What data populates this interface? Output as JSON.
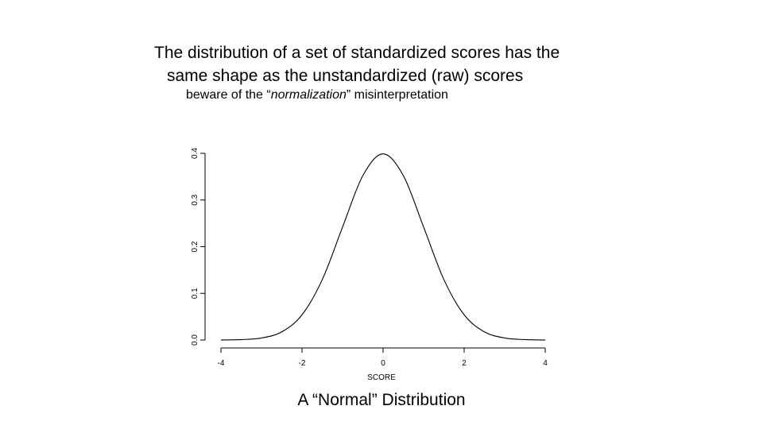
{
  "slide": {
    "title_line1": "The distribution of a set of standardized scores has the",
    "title_line2": "same shape as the unstandardized (raw) scores",
    "subtitle_pre": "beware of the “",
    "subtitle_em": "normalization",
    "subtitle_post": "” misinterpretation",
    "caption": "A “Normal” Distribution"
  },
  "chart_data": {
    "type": "line",
    "title": "",
    "xlabel": "SCORE",
    "ylabel": "",
    "xlim": [
      -4,
      4
    ],
    "ylim": [
      0,
      0.4
    ],
    "x_ticks": [
      -4,
      -2,
      0,
      2,
      4
    ],
    "x_tick_labels": [
      "-4",
      "-2",
      "0",
      "2",
      "4"
    ],
    "y_ticks": [
      0.0,
      0.1,
      0.2,
      0.3,
      0.4
    ],
    "y_tick_labels": [
      "0.0",
      "0.1",
      "0.2",
      "0.3",
      "0.4"
    ],
    "grid": false,
    "series": [
      {
        "x": [
          -4,
          -3.5,
          -3,
          -2.5,
          -2,
          -1.5,
          -1,
          -0.5,
          0,
          0.5,
          1,
          1.5,
          2,
          2.5,
          3,
          3.5,
          4
        ],
        "values": [
          0.0001,
          0.0009,
          0.0044,
          0.0175,
          0.054,
          0.1295,
          0.242,
          0.3521,
          0.3989,
          0.3521,
          0.242,
          0.1295,
          0.054,
          0.0175,
          0.0044,
          0.0009,
          0.0001
        ]
      }
    ]
  }
}
